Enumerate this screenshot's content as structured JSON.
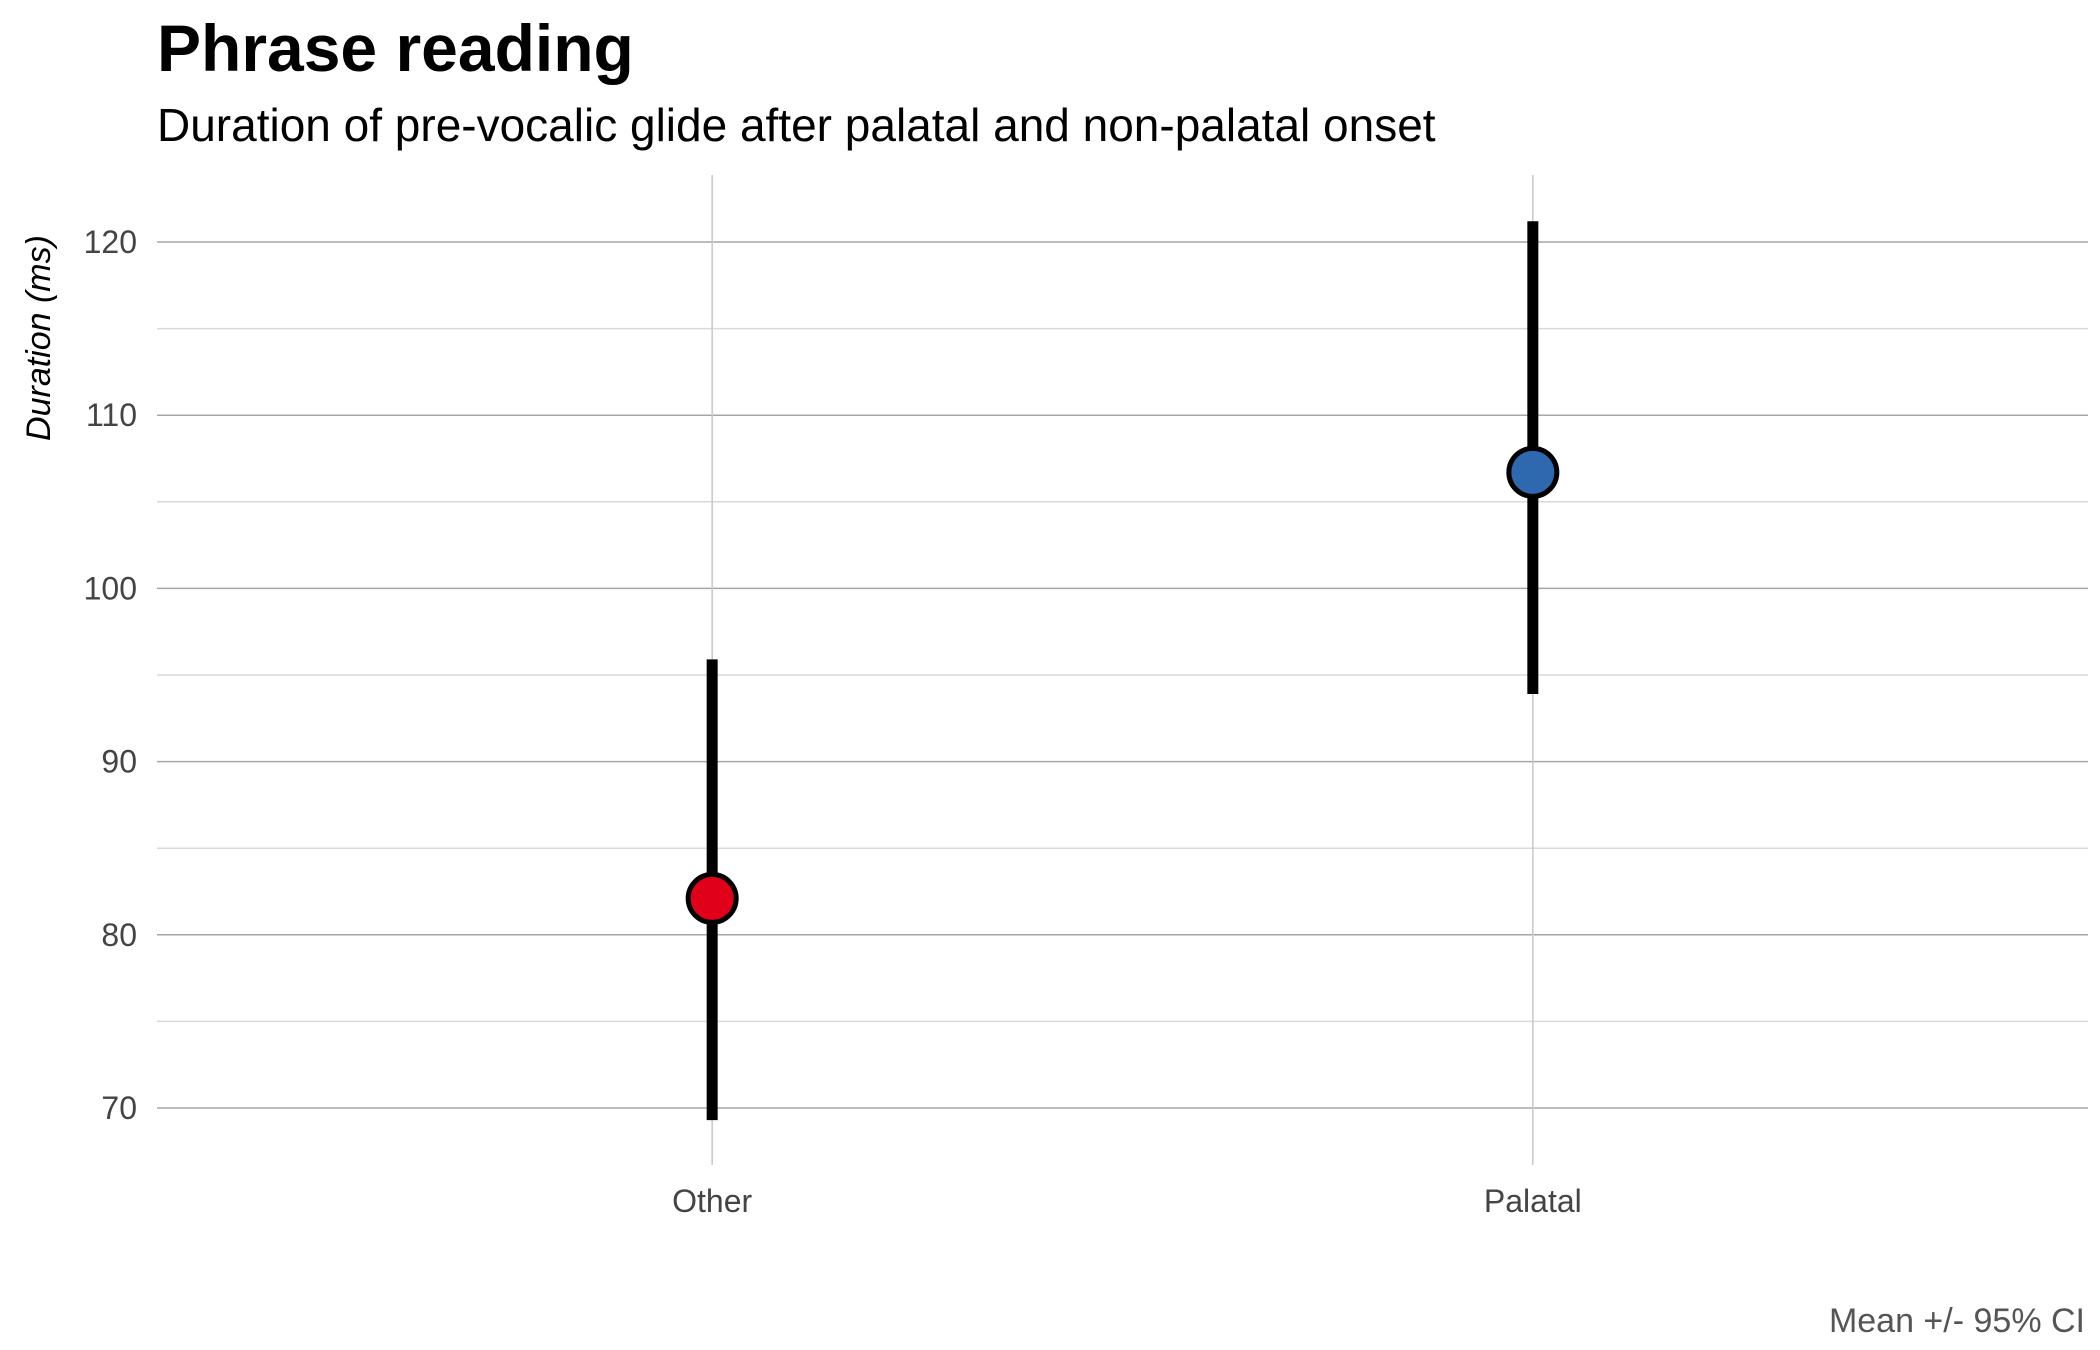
{
  "chart_data": {
    "type": "scatter",
    "title": "Phrase reading",
    "subtitle": "Duration of pre-vocalic glide after palatal and non-palatal onset",
    "caption": "Mean +/- 95% CI",
    "xlabel": "",
    "ylabel": "Duration (ms)",
    "categories": [
      "Other",
      "Palatal"
    ],
    "ylim": [
      67,
      124
    ],
    "yticks": [
      70,
      80,
      90,
      100,
      110,
      120
    ],
    "grid": true,
    "points": [
      {
        "category": "Other",
        "mean": 82.1,
        "lower": 69.3,
        "upper": 95.9,
        "color": "#E1001A"
      },
      {
        "category": "Palatal",
        "mean": 106.7,
        "lower": 93.9,
        "upper": 121.2,
        "color": "#2E69B0"
      }
    ]
  }
}
